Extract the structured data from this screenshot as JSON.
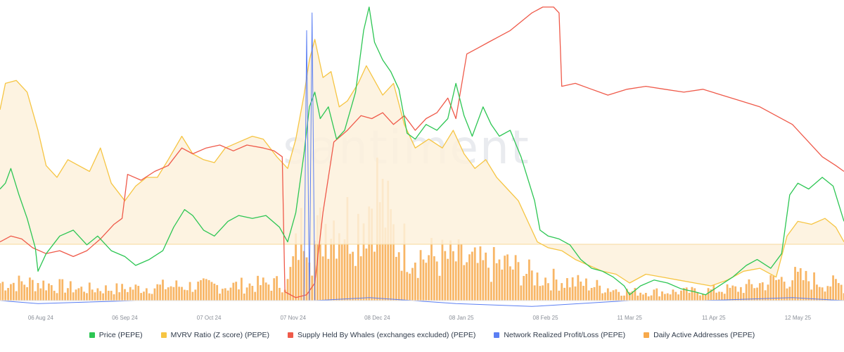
{
  "chart_data": {
    "type": "line",
    "title": "",
    "watermark": "santiment",
    "x_ticks": [
      "06 Aug 24",
      "06 Sep 24",
      "07 Oct 24",
      "07 Nov 24",
      "08 Dec 24",
      "08 Jan 25",
      "08 Feb 25",
      "11 Mar 25",
      "11 Apr 25",
      "12 May 25"
    ],
    "x_range": [
      "2024-07-22",
      "2025-05-29"
    ],
    "grid": false,
    "legend_position": "bottom",
    "series": [
      {
        "name": "Price (PEPE)",
        "color": "#2dc653",
        "style": "line",
        "points": [
          [
            "2024-07-22",
            0.38
          ],
          [
            "2024-07-24",
            0.4
          ],
          [
            "2024-07-26",
            0.45
          ],
          [
            "2024-07-29",
            0.36
          ],
          [
            "2024-08-01",
            0.28
          ],
          [
            "2024-08-04",
            0.18
          ],
          [
            "2024-08-05",
            0.1
          ],
          [
            "2024-08-08",
            0.16
          ],
          [
            "2024-08-13",
            0.22
          ],
          [
            "2024-08-18",
            0.24
          ],
          [
            "2024-08-23",
            0.19
          ],
          [
            "2024-08-27",
            0.22
          ],
          [
            "2024-09-01",
            0.17
          ],
          [
            "2024-09-06",
            0.15
          ],
          [
            "2024-09-10",
            0.12
          ],
          [
            "2024-09-15",
            0.14
          ],
          [
            "2024-09-20",
            0.17
          ],
          [
            "2024-09-24",
            0.25
          ],
          [
            "2024-09-28",
            0.31
          ],
          [
            "2024-10-01",
            0.29
          ],
          [
            "2024-10-05",
            0.24
          ],
          [
            "2024-10-09",
            0.22
          ],
          [
            "2024-10-14",
            0.27
          ],
          [
            "2024-10-18",
            0.29
          ],
          [
            "2024-10-23",
            0.28
          ],
          [
            "2024-10-28",
            0.29
          ],
          [
            "2024-11-02",
            0.25
          ],
          [
            "2024-11-05",
            0.2
          ],
          [
            "2024-11-08",
            0.3
          ],
          [
            "2024-11-11",
            0.5
          ],
          [
            "2024-11-13",
            0.66
          ],
          [
            "2024-11-15",
            0.71
          ],
          [
            "2024-11-17",
            0.62
          ],
          [
            "2024-11-20",
            0.66
          ],
          [
            "2024-11-23",
            0.55
          ],
          [
            "2024-11-26",
            0.58
          ],
          [
            "2024-11-30",
            0.71
          ],
          [
            "2024-12-03",
            0.92
          ],
          [
            "2024-12-05",
            1.0
          ],
          [
            "2024-12-07",
            0.88
          ],
          [
            "2024-12-10",
            0.82
          ],
          [
            "2024-12-13",
            0.78
          ],
          [
            "2024-12-16",
            0.72
          ],
          [
            "2024-12-19",
            0.57
          ],
          [
            "2024-12-22",
            0.55
          ],
          [
            "2024-12-26",
            0.6
          ],
          [
            "2024-12-30",
            0.58
          ],
          [
            "2025-01-03",
            0.62
          ],
          [
            "2025-01-06",
            0.74
          ],
          [
            "2025-01-09",
            0.63
          ],
          [
            "2025-01-12",
            0.56
          ],
          [
            "2025-01-16",
            0.66
          ],
          [
            "2025-01-19",
            0.6
          ],
          [
            "2025-01-22",
            0.56
          ],
          [
            "2025-01-26",
            0.58
          ],
          [
            "2025-01-30",
            0.49
          ],
          [
            "2025-02-02",
            0.4
          ],
          [
            "2025-02-04",
            0.34
          ],
          [
            "2025-02-06",
            0.24
          ],
          [
            "2025-02-09",
            0.22
          ],
          [
            "2025-02-13",
            0.21
          ],
          [
            "2025-02-17",
            0.19
          ],
          [
            "2025-02-21",
            0.14
          ],
          [
            "2025-02-25",
            0.11
          ],
          [
            "2025-03-01",
            0.1
          ],
          [
            "2025-03-05",
            0.08
          ],
          [
            "2025-03-09",
            0.05
          ],
          [
            "2025-03-11",
            0.02
          ],
          [
            "2025-03-15",
            0.05
          ],
          [
            "2025-03-20",
            0.07
          ],
          [
            "2025-03-25",
            0.06
          ],
          [
            "2025-03-30",
            0.04
          ],
          [
            "2025-04-04",
            0.03
          ],
          [
            "2025-04-08",
            0.02
          ],
          [
            "2025-04-13",
            0.05
          ],
          [
            "2025-04-18",
            0.08
          ],
          [
            "2025-04-23",
            0.12
          ],
          [
            "2025-04-27",
            0.14
          ],
          [
            "2025-05-02",
            0.11
          ],
          [
            "2025-05-06",
            0.16
          ],
          [
            "2025-05-09",
            0.36
          ],
          [
            "2025-05-12",
            0.4
          ],
          [
            "2025-05-16",
            0.38
          ],
          [
            "2025-05-21",
            0.42
          ],
          [
            "2025-05-25",
            0.39
          ],
          [
            "2025-05-29",
            0.27
          ]
        ]
      },
      {
        "name": "MVRV Ratio (Z score) (PEPE)",
        "color": "#f6c543",
        "style": "area",
        "points": [
          [
            "2024-07-22",
            0.65
          ],
          [
            "2024-07-24",
            0.74
          ],
          [
            "2024-07-28",
            0.75
          ],
          [
            "2024-08-01",
            0.71
          ],
          [
            "2024-08-05",
            0.58
          ],
          [
            "2024-08-08",
            0.46
          ],
          [
            "2024-08-12",
            0.42
          ],
          [
            "2024-08-16",
            0.48
          ],
          [
            "2024-08-20",
            0.46
          ],
          [
            "2024-08-24",
            0.44
          ],
          [
            "2024-08-28",
            0.52
          ],
          [
            "2024-09-01",
            0.4
          ],
          [
            "2024-09-06",
            0.34
          ],
          [
            "2024-09-10",
            0.39
          ],
          [
            "2024-09-14",
            0.42
          ],
          [
            "2024-09-18",
            0.42
          ],
          [
            "2024-09-22",
            0.48
          ],
          [
            "2024-09-27",
            0.56
          ],
          [
            "2024-10-01",
            0.5
          ],
          [
            "2024-10-05",
            0.48
          ],
          [
            "2024-10-09",
            0.47
          ],
          [
            "2024-10-13",
            0.52
          ],
          [
            "2024-10-18",
            0.54
          ],
          [
            "2024-10-23",
            0.56
          ],
          [
            "2024-10-27",
            0.55
          ],
          [
            "2024-11-01",
            0.49
          ],
          [
            "2024-11-05",
            0.45
          ],
          [
            "2024-11-08",
            0.55
          ],
          [
            "2024-11-11",
            0.7
          ],
          [
            "2024-11-13",
            0.82
          ],
          [
            "2024-11-15",
            0.89
          ],
          [
            "2024-11-18",
            0.76
          ],
          [
            "2024-11-21",
            0.78
          ],
          [
            "2024-11-24",
            0.66
          ],
          [
            "2024-11-27",
            0.68
          ],
          [
            "2024-12-01",
            0.74
          ],
          [
            "2024-12-04",
            0.8
          ],
          [
            "2024-12-07",
            0.75
          ],
          [
            "2024-12-10",
            0.7
          ],
          [
            "2024-12-14",
            0.74
          ],
          [
            "2024-12-18",
            0.6
          ],
          [
            "2024-12-22",
            0.52
          ],
          [
            "2024-12-27",
            0.55
          ],
          [
            "2025-01-01",
            0.52
          ],
          [
            "2025-01-05",
            0.58
          ],
          [
            "2025-01-09",
            0.5
          ],
          [
            "2025-01-13",
            0.45
          ],
          [
            "2025-01-17",
            0.48
          ],
          [
            "2025-01-21",
            0.42
          ],
          [
            "2025-01-25",
            0.38
          ],
          [
            "2025-01-29",
            0.34
          ],
          [
            "2025-02-02",
            0.26
          ],
          [
            "2025-02-05",
            0.2
          ],
          [
            "2025-02-09",
            0.18
          ],
          [
            "2025-02-14",
            0.17
          ],
          [
            "2025-02-19",
            0.14
          ],
          [
            "2025-02-24",
            0.12
          ],
          [
            "2025-03-01",
            0.1
          ],
          [
            "2025-03-06",
            0.09
          ],
          [
            "2025-03-11",
            0.06
          ],
          [
            "2025-03-17",
            0.09
          ],
          [
            "2025-03-23",
            0.08
          ],
          [
            "2025-03-29",
            0.07
          ],
          [
            "2025-04-04",
            0.06
          ],
          [
            "2025-04-10",
            0.05
          ],
          [
            "2025-04-16",
            0.07
          ],
          [
            "2025-04-22",
            0.1
          ],
          [
            "2025-04-28",
            0.11
          ],
          [
            "2025-05-04",
            0.08
          ],
          [
            "2025-05-08",
            0.22
          ],
          [
            "2025-05-12",
            0.27
          ],
          [
            "2025-05-17",
            0.26
          ],
          [
            "2025-05-22",
            0.28
          ],
          [
            "2025-05-26",
            0.25
          ],
          [
            "2025-05-29",
            0.2
          ]
        ]
      },
      {
        "name": "Supply Held By Whales (exchanges excluded) (PEPE)",
        "color": "#ef5a4a",
        "style": "line",
        "points": [
          [
            "2024-07-22",
            0.2
          ],
          [
            "2024-07-26",
            0.22
          ],
          [
            "2024-07-30",
            0.21
          ],
          [
            "2024-08-03",
            0.18
          ],
          [
            "2024-08-08",
            0.16
          ],
          [
            "2024-08-13",
            0.17
          ],
          [
            "2024-08-18",
            0.15
          ],
          [
            "2024-08-23",
            0.17
          ],
          [
            "2024-08-28",
            0.21
          ],
          [
            "2024-09-02",
            0.26
          ],
          [
            "2024-09-05",
            0.28
          ],
          [
            "2024-09-07",
            0.43
          ],
          [
            "2024-09-12",
            0.41
          ],
          [
            "2024-09-17",
            0.44
          ],
          [
            "2024-09-22",
            0.46
          ],
          [
            "2024-09-27",
            0.52
          ],
          [
            "2024-10-01",
            0.5
          ],
          [
            "2024-10-06",
            0.52
          ],
          [
            "2024-10-11",
            0.53
          ],
          [
            "2024-10-16",
            0.51
          ],
          [
            "2024-10-21",
            0.53
          ],
          [
            "2024-10-27",
            0.52
          ],
          [
            "2024-10-31",
            0.51
          ],
          [
            "2024-11-03",
            0.49
          ],
          [
            "2024-11-04",
            0.03
          ],
          [
            "2024-11-08",
            0.01
          ],
          [
            "2024-11-12",
            0.02
          ],
          [
            "2024-11-15",
            0.06
          ],
          [
            "2024-11-18",
            0.3
          ],
          [
            "2024-11-22",
            0.54
          ],
          [
            "2024-11-27",
            0.58
          ],
          [
            "2024-12-02",
            0.63
          ],
          [
            "2024-12-06",
            0.62
          ],
          [
            "2024-12-10",
            0.64
          ],
          [
            "2024-12-14",
            0.6
          ],
          [
            "2024-12-18",
            0.63
          ],
          [
            "2024-12-22",
            0.58
          ],
          [
            "2024-12-26",
            0.62
          ],
          [
            "2024-12-30",
            0.64
          ],
          [
            "2025-01-03",
            0.69
          ],
          [
            "2025-01-06",
            0.62
          ],
          [
            "2025-01-10",
            0.84
          ],
          [
            "2025-01-14",
            0.86
          ],
          [
            "2025-01-18",
            0.88
          ],
          [
            "2025-01-22",
            0.9
          ],
          [
            "2025-01-26",
            0.92
          ],
          [
            "2025-01-30",
            0.95
          ],
          [
            "2025-02-03",
            0.98
          ],
          [
            "2025-02-07",
            1.0
          ],
          [
            "2025-02-11",
            1.0
          ],
          [
            "2025-02-13",
            0.98
          ],
          [
            "2025-02-14",
            0.73
          ],
          [
            "2025-02-19",
            0.74
          ],
          [
            "2025-02-25",
            0.72
          ],
          [
            "2025-03-03",
            0.7
          ],
          [
            "2025-03-10",
            0.72
          ],
          [
            "2025-03-17",
            0.73
          ],
          [
            "2025-03-24",
            0.72
          ],
          [
            "2025-03-31",
            0.71
          ],
          [
            "2025-04-07",
            0.72
          ],
          [
            "2025-04-14",
            0.7
          ],
          [
            "2025-04-21",
            0.68
          ],
          [
            "2025-04-28",
            0.66
          ],
          [
            "2025-05-04",
            0.63
          ],
          [
            "2025-05-10",
            0.6
          ],
          [
            "2025-05-16",
            0.54
          ],
          [
            "2025-05-21",
            0.49
          ],
          [
            "2025-05-26",
            0.46
          ],
          [
            "2025-05-29",
            0.44
          ]
        ]
      },
      {
        "name": "Network Realized Profit/Loss (PEPE)",
        "color": "#5b7ff3",
        "style": "line",
        "points": [
          [
            "2024-07-22",
            0.0
          ],
          [
            "2024-08-05",
            -0.01
          ],
          [
            "2024-09-10",
            0.0
          ],
          [
            "2024-10-20",
            0.0
          ],
          [
            "2024-11-11",
            0.0
          ],
          [
            "2024-11-12",
            0.92
          ],
          [
            "2024-11-13",
            0.0
          ],
          [
            "2024-11-14",
            0.98
          ],
          [
            "2024-11-15",
            0.0
          ],
          [
            "2024-12-05",
            0.01
          ],
          [
            "2025-01-06",
            -0.01
          ],
          [
            "2025-02-03",
            -0.02
          ],
          [
            "2025-03-11",
            0.0
          ],
          [
            "2025-04-07",
            0.0
          ],
          [
            "2025-05-10",
            0.01
          ],
          [
            "2025-05-29",
            0.0
          ]
        ]
      },
      {
        "name": "Daily Active Addresses (PEPE)",
        "color": "#f7a94b",
        "style": "bar",
        "anchors": [
          [
            "2024-07-22",
            0.06
          ],
          [
            "2024-08-05",
            0.06
          ],
          [
            "2024-08-20",
            0.04
          ],
          [
            "2024-09-05",
            0.04
          ],
          [
            "2024-09-25",
            0.05
          ],
          [
            "2024-10-15",
            0.05
          ],
          [
            "2024-11-05",
            0.06
          ],
          [
            "2024-11-12",
            0.3
          ],
          [
            "2024-11-14",
            0.18
          ],
          [
            "2024-11-20",
            0.28
          ],
          [
            "2024-12-01",
            0.26
          ],
          [
            "2024-12-08",
            0.38
          ],
          [
            "2024-12-15",
            0.2
          ],
          [
            "2024-12-25",
            0.15
          ],
          [
            "2025-01-06",
            0.14
          ],
          [
            "2025-01-15",
            0.12
          ],
          [
            "2025-01-25",
            0.12
          ],
          [
            "2025-02-05",
            0.08
          ],
          [
            "2025-02-20",
            0.06
          ],
          [
            "2025-03-11",
            0.03
          ],
          [
            "2025-04-01",
            0.03
          ],
          [
            "2025-04-20",
            0.04
          ],
          [
            "2025-05-10",
            0.08
          ],
          [
            "2025-05-29",
            0.05
          ]
        ]
      }
    ]
  }
}
